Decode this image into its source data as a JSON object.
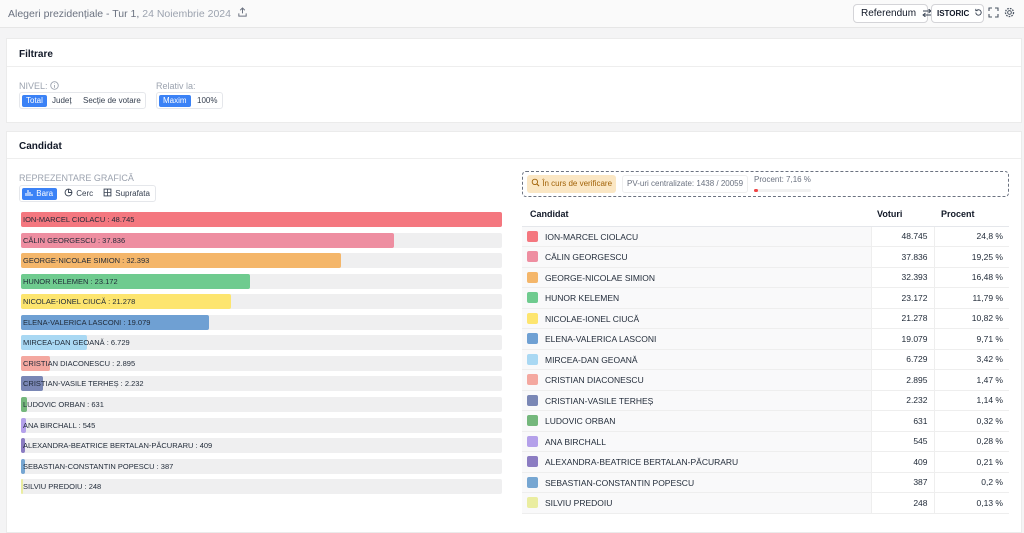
{
  "header": {
    "title_main": "Alegeri prezidențiale - Tur 1,",
    "title_date": "24 Noiembrie 2024",
    "referendum_label": "Referendum",
    "istoric_label": "ISTORIC"
  },
  "filters": {
    "title": "Filtrare",
    "nivel_label": "NIVEL:",
    "nivel_options": [
      "Total",
      "Județ",
      "Secție de votare"
    ],
    "relativ_label": "Relativ la:",
    "relativ_options": [
      "Maxim",
      "100%"
    ]
  },
  "candidates_section": {
    "title": "Candidat",
    "graph_label": "REPREZENTARE GRAFICĂ",
    "graph_types": [
      "Bara",
      "Cerc",
      "Suprafata"
    ]
  },
  "status": {
    "verify_label": "În curs de verificare",
    "pv_label": "PV-uri centralizate: 1438 / 20059",
    "percent_label": "Procent: 7,16 %",
    "percent_value": 7.16
  },
  "table": {
    "headers": [
      "Candidat",
      "Voturi",
      "Procent"
    ]
  },
  "colors": {
    "accent": "#3b82f6"
  },
  "chart_data": {
    "type": "bar",
    "title": "",
    "categories": [
      "ION-MARCEL CIOLACU",
      "CĂLIN GEORGESCU",
      "GEORGE-NICOLAE SIMION",
      "HUNOR KELEMEN",
      "NICOLAE-IONEL CIUCĂ",
      "ELENA-VALERICA LASCONI",
      "MIRCEA-DAN GEOANĂ",
      "CRISTIAN DIACONESCU",
      "CRISTIAN-VASILE TERHEȘ",
      "LUDOVIC ORBAN",
      "ANA BIRCHALL",
      "ALEXANDRA-BEATRICE BERTALAN-PĂCURARU",
      "SEBASTIAN-CONSTANTIN POPESCU",
      "SILVIU PREDOIU"
    ],
    "values": [
      48745,
      37836,
      32393,
      23172,
      21278,
      19079,
      6729,
      2895,
      2232,
      631,
      545,
      409,
      387,
      248
    ],
    "bar_labels": [
      "ION-MARCEL CIOLACU : 48.745",
      "CĂLIN GEORGESCU : 37.836",
      "GEORGE-NICOLAE SIMION : 32.393",
      "HUNOR KELEMEN : 23.172",
      "NICOLAE-IONEL CIUCĂ : 21.278",
      "ELENA-VALERICA LASCONI : 19.079",
      "MIRCEA-DAN GEOANĂ : 6.729",
      "CRISTIAN DIACONESCU : 2.895",
      "CRISTIAN-VASILE TERHEȘ : 2.232",
      "LUDOVIC ORBAN : 631",
      "ANA BIRCHALL : 545",
      "ALEXANDRA-BEATRICE BERTALAN-PĂCURARU : 409",
      "SEBASTIAN-CONSTANTIN POPESCU : 387",
      "SILVIU PREDOIU : 248"
    ],
    "votes_display": [
      "48.745",
      "37.836",
      "32.393",
      "23.172",
      "21.278",
      "19.079",
      "6.729",
      "2.895",
      "2.232",
      "631",
      "545",
      "409",
      "387",
      "248"
    ],
    "percent_display": [
      "24,8 %",
      "19,25 %",
      "16,48 %",
      "11,79 %",
      "10,82 %",
      "9,71 %",
      "3,42 %",
      "1,47 %",
      "1,14 %",
      "0,32 %",
      "0,28 %",
      "0,21 %",
      "0,2 %",
      "0,13 %"
    ],
    "colors": [
      "#f4777f",
      "#ee8ea1",
      "#f4b66a",
      "#6fcb8f",
      "#fde56f",
      "#6fa0d3",
      "#a9d8f3",
      "#f4a8a0",
      "#7a87b5",
      "#74b77c",
      "#b4a0ea",
      "#8b7cc2",
      "#76a6d2",
      "#eaeda0"
    ],
    "xlim": [
      0,
      48745
    ],
    "legend": "none",
    "grid": false
  }
}
